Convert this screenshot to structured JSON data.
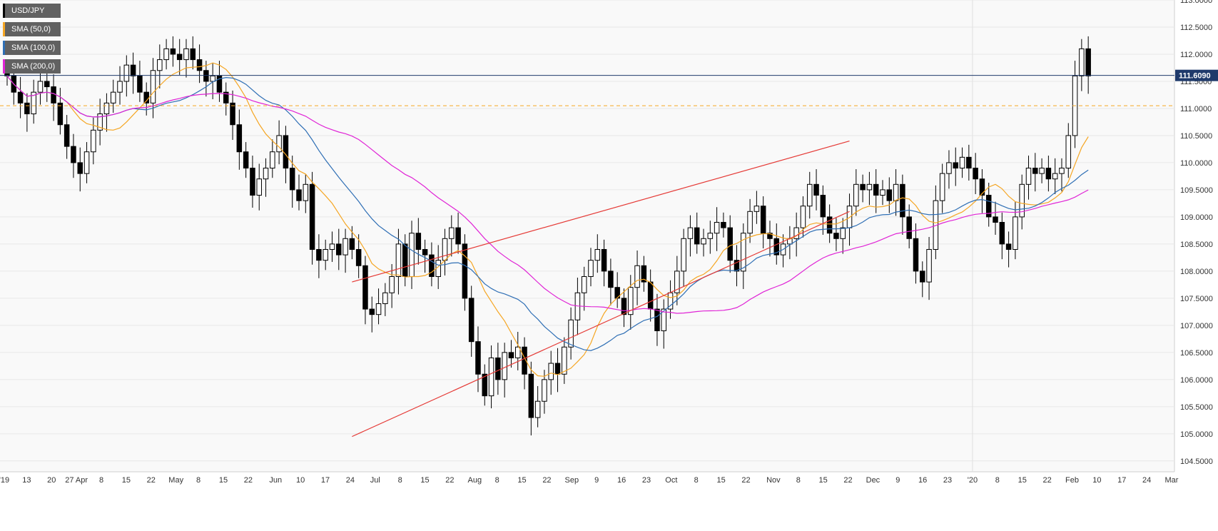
{
  "chart_data": {
    "type": "candlestick",
    "symbol": "USD/JPY",
    "current_price": "111.6090",
    "ylim": [
      104.3,
      113.0
    ],
    "yticks": [
      "113.0000",
      "112.5000",
      "112.0000",
      "111.5000",
      "111.0000",
      "110.5000",
      "110.0000",
      "109.5000",
      "109.0000",
      "108.5000",
      "108.0000",
      "107.5000",
      "107.0000",
      "106.5000",
      "106.0000",
      "105.5000",
      "105.0000",
      "104.5000"
    ],
    "xticks": [
      "'19",
      "13",
      "20",
      "27 Apr",
      "8",
      "15",
      "22",
      "May",
      "8",
      "15",
      "22",
      "Jun",
      "10",
      "17",
      "24",
      "Jul",
      "8",
      "15",
      "22",
      "Aug",
      "8",
      "15",
      "22",
      "Sep",
      "9",
      "16",
      "23",
      "Oct",
      "8",
      "15",
      "22",
      "Nov",
      "8",
      "15",
      "22",
      "Dec",
      "9",
      "16",
      "23",
      "'20",
      "8",
      "15",
      "22",
      "Feb",
      "10",
      "17",
      "24",
      "Mar"
    ],
    "legend": [
      {
        "label": "USD/JPY",
        "color": "#000000"
      },
      {
        "label": "SMA (50,0)",
        "color": "#f5a623"
      },
      {
        "label": "SMA (100,0)",
        "color": "#2f6fb5"
      },
      {
        "label": "SMA (200,0)",
        "color": "#e024d6"
      }
    ],
    "horizontal_levels": [
      {
        "value": 111.609,
        "color": "#1f3a6b",
        "style": "solid"
      },
      {
        "value": 111.05,
        "color": "#f5a623",
        "style": "dashed"
      }
    ],
    "trendlines": [
      {
        "from": [
          52,
          107.8
        ],
        "to": [
          115,
          110.4
        ],
        "color": "#e53935"
      },
      {
        "from": [
          52,
          104.95
        ],
        "to": [
          115,
          109.1
        ],
        "color": "#e53935"
      }
    ],
    "close": [
      111.6,
      111.3,
      111.1,
      110.9,
      111.3,
      111.5,
      111.4,
      111.1,
      110.7,
      110.3,
      110.0,
      109.8,
      110.2,
      110.6,
      110.9,
      111.1,
      111.3,
      111.5,
      111.8,
      111.6,
      111.3,
      111.1,
      111.7,
      111.9,
      112.1,
      112.0,
      111.9,
      112.1,
      111.9,
      111.7,
      111.5,
      111.6,
      111.3,
      111.1,
      110.7,
      110.2,
      109.9,
      109.4,
      109.7,
      109.9,
      110.2,
      110.5,
      109.9,
      109.5,
      109.3,
      109.6,
      108.4,
      108.2,
      108.4,
      108.5,
      108.3,
      108.6,
      108.4,
      108.1,
      107.3,
      107.2,
      107.4,
      107.6,
      107.9,
      108.5,
      107.9,
      108.7,
      108.4,
      108.3,
      107.9,
      108.2,
      108.6,
      108.8,
      108.5,
      107.5,
      106.7,
      106.1,
      105.7,
      106.4,
      106.0,
      106.5,
      106.4,
      106.6,
      106.1,
      105.3,
      105.6,
      106.0,
      106.3,
      106.1,
      106.6,
      107.1,
      107.6,
      107.9,
      108.2,
      108.4,
      108.0,
      107.7,
      107.5,
      107.2,
      107.7,
      108.1,
      107.8,
      107.3,
      106.9,
      107.3,
      107.6,
      108.0,
      108.6,
      108.8,
      108.5,
      108.6,
      108.7,
      108.9,
      108.8,
      108.2,
      108.0,
      108.7,
      109.1,
      109.2,
      108.7,
      108.6,
      108.3,
      108.5,
      108.6,
      108.8,
      109.2,
      109.6,
      109.4,
      109.0,
      108.7,
      108.6,
      108.8,
      109.2,
      109.6,
      109.5,
      109.6,
      109.4,
      109.5,
      109.3,
      109.6,
      109.0,
      108.6,
      108.0,
      107.8,
      108.4,
      109.3,
      109.8,
      110.0,
      109.9,
      110.1,
      109.9,
      109.7,
      109.4,
      109.0,
      108.9,
      108.5,
      108.4,
      109.0,
      109.6,
      109.9,
      109.8,
      109.9,
      109.7,
      109.8,
      109.9,
      110.5,
      111.6,
      112.1,
      111.6
    ]
  }
}
